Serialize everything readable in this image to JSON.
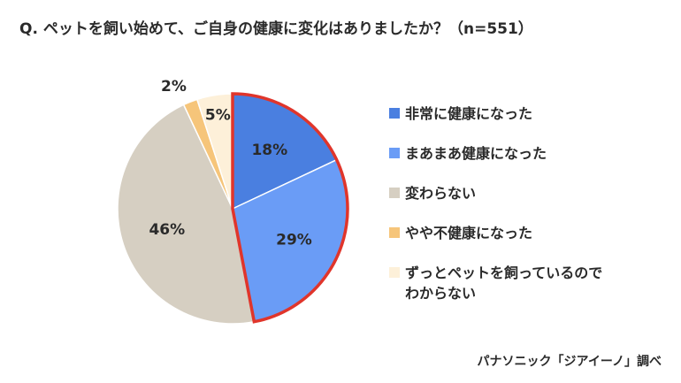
{
  "title": "Q. ペットを飼い始めて、ご自身の健康に変化はありましたか？（n=551）",
  "source": "パナソニック「ジアイーノ」調べ",
  "chart_data": {
    "type": "pie",
    "title": "Q. ペットを飼い始めて、ご自身の健康に変化はありましたか？（n=551）",
    "n": 551,
    "unit": "%",
    "start": "12 o'clock",
    "direction": "clockwise",
    "highlighted_slices": [
      "非常に健康になった",
      "まあまあ健康になった"
    ],
    "highlight_color": "#e0352b",
    "slices": [
      {
        "label": "非常に健康になった",
        "value": 18,
        "display": "18%",
        "color": "#4a7fe0"
      },
      {
        "label": "まあまあ健康になった",
        "value": 29,
        "display": "29%",
        "color": "#6a9cf6"
      },
      {
        "label": "変わらない",
        "value": 46,
        "display": "46%",
        "color": "#d6cfc2"
      },
      {
        "label": "やや不健康になった",
        "value": 2,
        "display": "2%",
        "color": "#f6c57a"
      },
      {
        "label": "ずっとペットを飼っているので\nわからない",
        "value": 5,
        "display": "5%",
        "color": "#fdf0d9"
      }
    ],
    "legend_position": "right"
  }
}
